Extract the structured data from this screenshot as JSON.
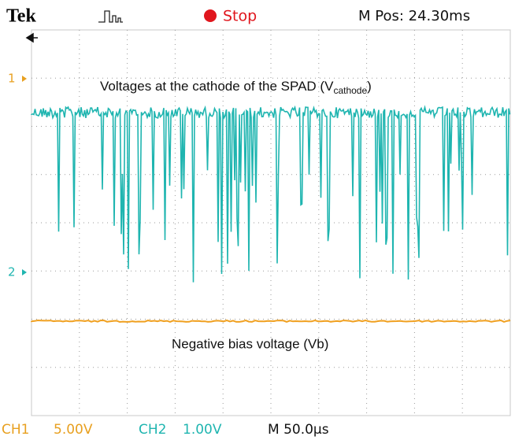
{
  "header": {
    "brand": "Tek",
    "state": "Stop",
    "position": "M Pos: 24.30ms"
  },
  "annotations": {
    "cathode": {
      "text": "Voltages at the cathode of the SPAD (V",
      "sub": "cathode",
      "close": ")"
    },
    "bias": "Negative bias voltage (Vb)"
  },
  "markers": {
    "ch1": "1",
    "ch2": "2"
  },
  "footer": {
    "ch1_name": "CH1",
    "ch1_scale": "5.00V",
    "ch2_name": "CH2",
    "ch2_scale": "1.00V",
    "timebase": "M 50.0µs"
  }
}
